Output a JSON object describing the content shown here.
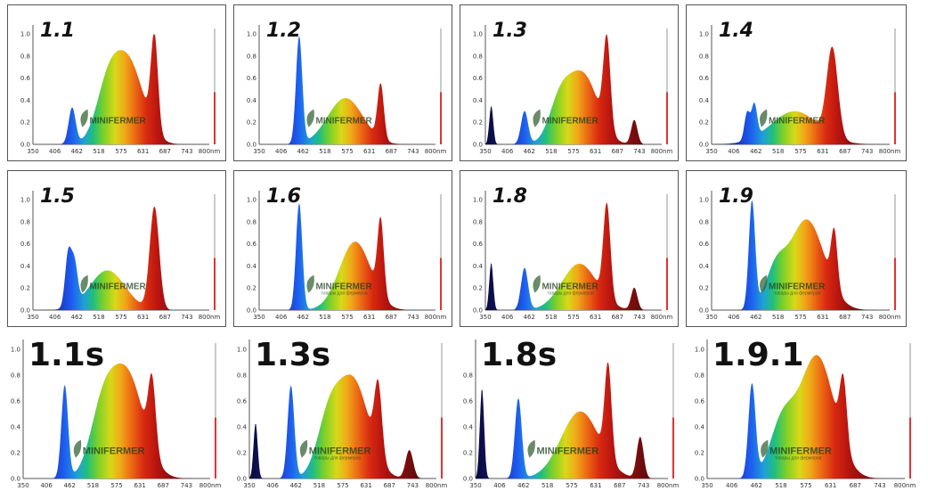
{
  "watermark": "MINIFERMER",
  "watermark_sub": "товары для фермеров",
  "chart_data": [
    {
      "type": "area",
      "title": "1.1",
      "x_ticks": [
        "350",
        "406",
        "462",
        "518",
        "575",
        "631",
        "687",
        "743",
        "800"
      ],
      "x_unit": "nm",
      "y_ticks": [
        "0.0",
        "0.2",
        "0.4",
        "0.6",
        "0.8",
        "1.0"
      ],
      "ylim": [
        0,
        1.05
      ],
      "xlim": [
        350,
        800
      ],
      "peaks": [
        {
          "x": 450,
          "y": 0.33,
          "w": 9
        },
        {
          "x": 595,
          "y": 0.72,
          "w": 38
        },
        {
          "x": 540,
          "y": 0.45,
          "w": 30
        },
        {
          "x": 660,
          "y": 0.85,
          "w": 9
        }
      ],
      "tail": 16
    },
    {
      "type": "area",
      "title": "1.2",
      "x_ticks": [
        "350",
        "406",
        "462",
        "518",
        "575",
        "631",
        "687",
        "743",
        "800"
      ],
      "x_unit": "nm",
      "y_ticks": [
        "0.0",
        "0.2",
        "0.4",
        "0.6",
        "0.8",
        "1.0"
      ],
      "ylim": [
        0,
        1.05
      ],
      "xlim": [
        350,
        800
      ],
      "peaks": [
        {
          "x": 452,
          "y": 0.97,
          "w": 8
        },
        {
          "x": 570,
          "y": 0.42,
          "w": 45
        },
        {
          "x": 660,
          "y": 0.5,
          "w": 8
        }
      ],
      "tail": 14
    },
    {
      "type": "area",
      "title": "1.3",
      "x_ticks": [
        "350",
        "406",
        "462",
        "518",
        "575",
        "631",
        "687",
        "743",
        "800"
      ],
      "x_unit": "nm",
      "y_ticks": [
        "0.0",
        "0.2",
        "0.4",
        "0.6",
        "0.8",
        "1.0"
      ],
      "ylim": [
        0,
        1.05
      ],
      "xlim": [
        350,
        800
      ],
      "peaks": [
        {
          "x": 365,
          "y": 0.35,
          "w": 5
        },
        {
          "x": 450,
          "y": 0.3,
          "w": 9
        },
        {
          "x": 600,
          "y": 0.62,
          "w": 38
        },
        {
          "x": 540,
          "y": 0.35,
          "w": 28
        },
        {
          "x": 660,
          "y": 0.82,
          "w": 9
        },
        {
          "x": 730,
          "y": 0.22,
          "w": 8
        }
      ],
      "tail": 14
    },
    {
      "type": "area",
      "title": "1.4",
      "x_ticks": [
        "350",
        "406",
        "462",
        "518",
        "575",
        "631",
        "687",
        "743",
        "800"
      ],
      "x_unit": "nm",
      "y_ticks": [
        "0.0",
        "0.2",
        "0.4",
        "0.6",
        "0.8",
        "1.0"
      ],
      "ylim": [
        0,
        1.05
      ],
      "xlim": [
        350,
        800
      ],
      "peaks": [
        {
          "x": 440,
          "y": 0.25,
          "w": 7
        },
        {
          "x": 458,
          "y": 0.3,
          "w": 7
        },
        {
          "x": 560,
          "y": 0.3,
          "w": 60
        },
        {
          "x": 655,
          "y": 0.8,
          "w": 14
        }
      ],
      "tail": 14
    },
    {
      "type": "area",
      "title": "1.5",
      "x_ticks": [
        "350",
        "406",
        "462",
        "518",
        "575",
        "631",
        "687",
        "743",
        "800"
      ],
      "x_unit": "nm",
      "y_ticks": [
        "0.0",
        "0.2",
        "0.4",
        "0.6",
        "0.8",
        "1.0"
      ],
      "ylim": [
        0,
        1.05
      ],
      "xlim": [
        350,
        800
      ],
      "peaks": [
        {
          "x": 440,
          "y": 0.48,
          "w": 8
        },
        {
          "x": 456,
          "y": 0.36,
          "w": 8
        },
        {
          "x": 540,
          "y": 0.36,
          "w": 45
        },
        {
          "x": 660,
          "y": 0.93,
          "w": 12
        }
      ],
      "tail": 14
    },
    {
      "type": "area",
      "title": "1.6",
      "x_ticks": [
        "350",
        "406",
        "462",
        "518",
        "575",
        "631",
        "687",
        "743",
        "800"
      ],
      "x_unit": "nm",
      "y_ticks": [
        "0.0",
        "0.2",
        "0.4",
        "0.6",
        "0.8",
        "1.0"
      ],
      "ylim": [
        0,
        1.05
      ],
      "xlim": [
        350,
        800
      ],
      "peaks": [
        {
          "x": 452,
          "y": 0.97,
          "w": 8
        },
        {
          "x": 595,
          "y": 0.62,
          "w": 40
        },
        {
          "x": 660,
          "y": 0.68,
          "w": 8
        }
      ],
      "tail": 14
    },
    {
      "type": "area",
      "title": "1.8",
      "x_ticks": [
        "350",
        "406",
        "462",
        "518",
        "575",
        "631",
        "687",
        "743",
        "800"
      ],
      "x_unit": "nm",
      "y_ticks": [
        "0.0",
        "0.2",
        "0.4",
        "0.6",
        "0.8",
        "1.0"
      ],
      "ylim": [
        0,
        1.05
      ],
      "xlim": [
        350,
        800
      ],
      "peaks": [
        {
          "x": 365,
          "y": 0.43,
          "w": 5
        },
        {
          "x": 450,
          "y": 0.38,
          "w": 9
        },
        {
          "x": 590,
          "y": 0.42,
          "w": 45
        },
        {
          "x": 660,
          "y": 0.85,
          "w": 9
        },
        {
          "x": 730,
          "y": 0.2,
          "w": 8
        }
      ],
      "tail": 14
    },
    {
      "type": "area",
      "title": "1.9",
      "x_ticks": [
        "350",
        "406",
        "462",
        "518",
        "575",
        "631",
        "687",
        "743",
        "800"
      ],
      "x_unit": "nm",
      "y_ticks": [
        "0.0",
        "0.2",
        "0.4",
        "0.6",
        "0.8",
        "1.0"
      ],
      "ylim": [
        0,
        1.05
      ],
      "xlim": [
        350,
        800
      ],
      "peaks": [
        {
          "x": 452,
          "y": 0.97,
          "w": 8
        },
        {
          "x": 590,
          "y": 0.82,
          "w": 45
        },
        {
          "x": 660,
          "y": 0.5,
          "w": 8
        },
        {
          "x": 510,
          "y": 0.3,
          "w": 25
        }
      ],
      "tail": 14
    },
    {
      "type": "area",
      "title": "1.1s",
      "x_ticks": [
        "350",
        "406",
        "462",
        "518",
        "575",
        "631",
        "687",
        "743",
        "800"
      ],
      "x_unit": "nm",
      "y_ticks": [
        "0.0",
        "0.2",
        "0.4",
        "0.6",
        "0.8",
        "1.0"
      ],
      "ylim": [
        0,
        1.05
      ],
      "xlim": [
        350,
        800
      ],
      "peaks": [
        {
          "x": 450,
          "y": 0.72,
          "w": 8
        },
        {
          "x": 600,
          "y": 0.8,
          "w": 40
        },
        {
          "x": 540,
          "y": 0.45,
          "w": 30
        },
        {
          "x": 660,
          "y": 0.55,
          "w": 9
        }
      ],
      "tail": 14
    },
    {
      "type": "area",
      "title": "1.3s",
      "x_ticks": [
        "350",
        "406",
        "462",
        "518",
        "575",
        "631",
        "687",
        "743",
        "800"
      ],
      "x_unit": "nm",
      "y_ticks": [
        "0.0",
        "0.2",
        "0.4",
        "0.6",
        "0.8",
        "1.0"
      ],
      "ylim": [
        0,
        1.05
      ],
      "xlim": [
        350,
        800
      ],
      "peaks": [
        {
          "x": 365,
          "y": 0.43,
          "w": 5
        },
        {
          "x": 450,
          "y": 0.72,
          "w": 8
        },
        {
          "x": 600,
          "y": 0.75,
          "w": 38
        },
        {
          "x": 540,
          "y": 0.4,
          "w": 28
        },
        {
          "x": 660,
          "y": 0.55,
          "w": 9
        },
        {
          "x": 735,
          "y": 0.22,
          "w": 9
        }
      ],
      "tail": 14
    },
    {
      "type": "area",
      "title": "1.8s",
      "x_ticks": [
        "350",
        "406",
        "462",
        "518",
        "575",
        "631",
        "687",
        "743",
        "800"
      ],
      "x_unit": "nm",
      "y_ticks": [
        "0.8",
        "0.6",
        "0.4",
        "0.2",
        "0.0"
      ],
      "ylim": [
        0,
        1.05
      ],
      "xlim": [
        350,
        800
      ],
      "peaks": [
        {
          "x": 365,
          "y": 0.7,
          "w": 5
        },
        {
          "x": 450,
          "y": 0.62,
          "w": 8
        },
        {
          "x": 595,
          "y": 0.52,
          "w": 45
        },
        {
          "x": 660,
          "y": 0.72,
          "w": 8
        },
        {
          "x": 735,
          "y": 0.32,
          "w": 8
        }
      ],
      "tail": 14
    },
    {
      "type": "area",
      "title": "1.9.1",
      "x_ticks": [
        "350",
        "406",
        "462",
        "518",
        "575",
        "631",
        "687",
        "743",
        "800"
      ],
      "x_unit": "nm",
      "y_ticks": [
        "0.0",
        "0.2",
        "0.4",
        "0.6",
        "0.8",
        "1.0"
      ],
      "ylim": [
        0,
        1.05
      ],
      "xlim": [
        350,
        800
      ],
      "peaks": [
        {
          "x": 452,
          "y": 0.72,
          "w": 8
        },
        {
          "x": 600,
          "y": 0.95,
          "w": 40
        },
        {
          "x": 520,
          "y": 0.4,
          "w": 28
        },
        {
          "x": 660,
          "y": 0.5,
          "w": 8
        }
      ],
      "tail": 14
    }
  ]
}
